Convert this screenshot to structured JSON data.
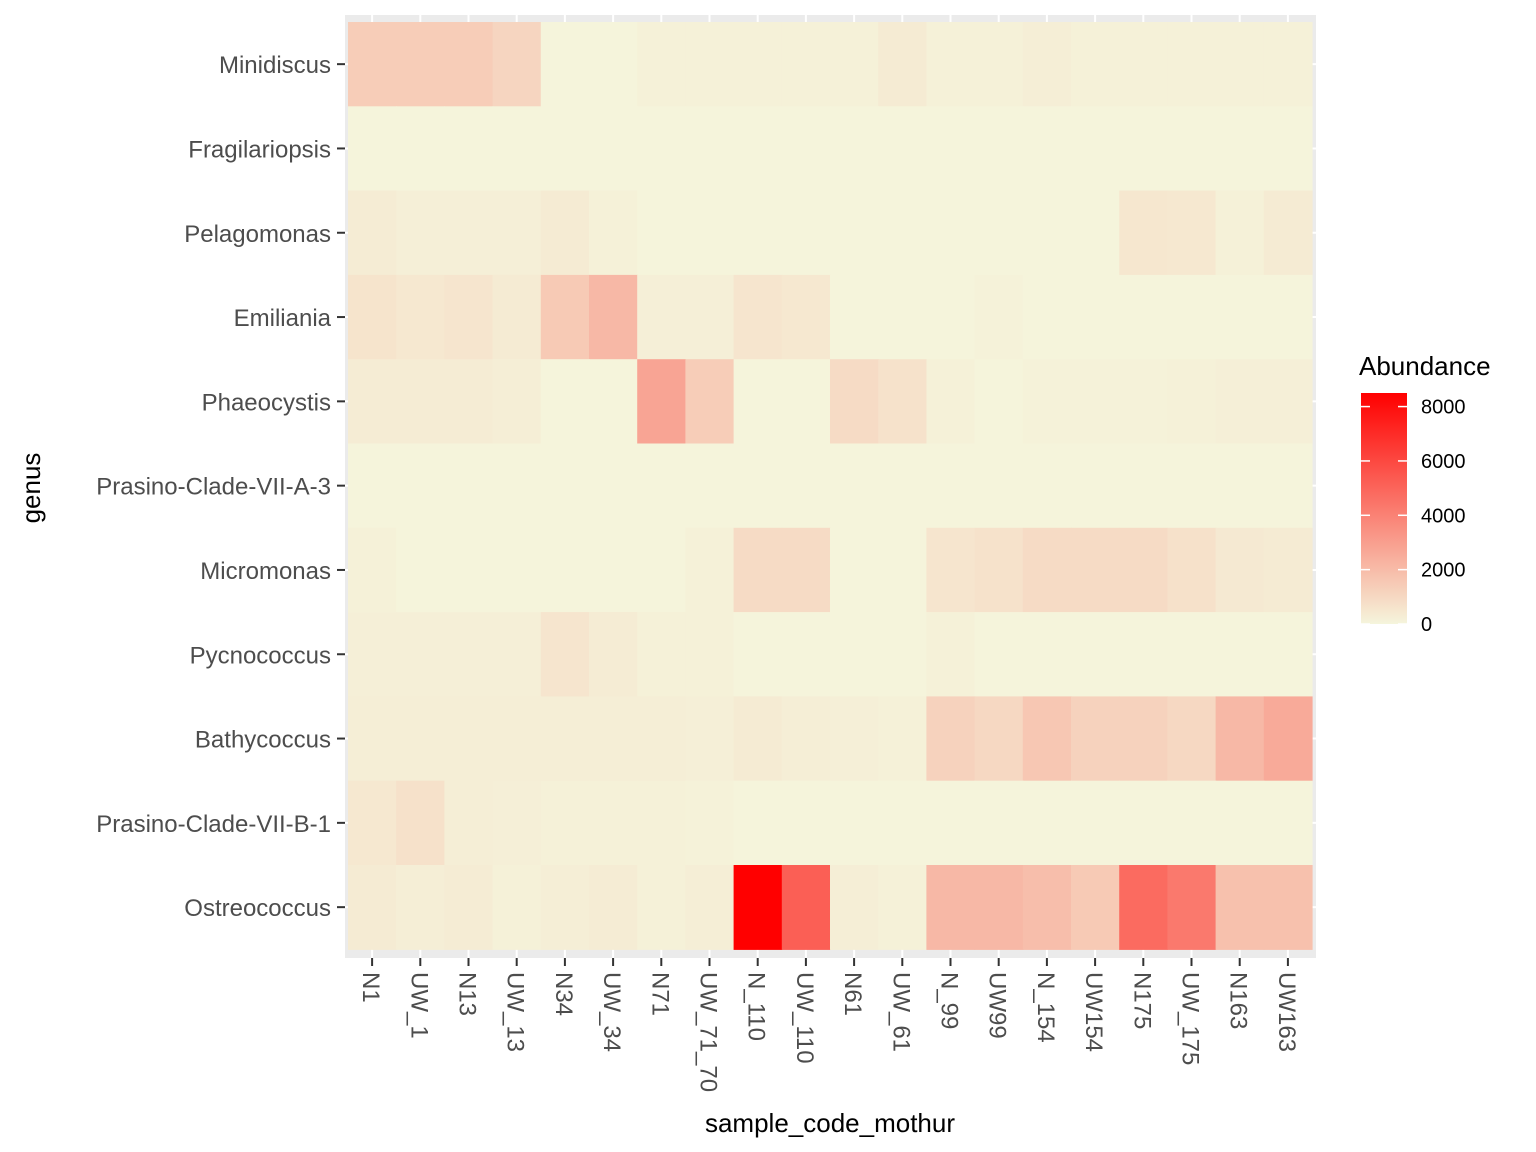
{
  "chart_data": {
    "type": "heatmap",
    "xlabel": "sample_code_mothur",
    "ylabel": "genus",
    "x": [
      "N1",
      "UW_1",
      "N13",
      "UW_13",
      "N34",
      "UW_34",
      "N71",
      "UW_71_70",
      "N_110",
      "UW_110",
      "N61",
      "UW_61",
      "N_99",
      "UW99",
      "N_154",
      "UW154",
      "N175",
      "UW_175",
      "N163",
      "UW163"
    ],
    "y": [
      "Minidiscus",
      "Fragilariopsis",
      "Pelagomonas",
      "Emiliania",
      "Phaeocystis",
      "Prasino-Clade-VII-A-3",
      "Micromonas",
      "Pycnococcus",
      "Bathycoccus",
      "Prasino-Clade-VII-B-1",
      "Ostreococcus"
    ],
    "values": [
      [
        1400,
        1400,
        1400,
        1100,
        50,
        50,
        150,
        150,
        150,
        150,
        150,
        350,
        150,
        150,
        250,
        150,
        150,
        150,
        150,
        150
      ],
      [
        20,
        20,
        20,
        20,
        20,
        20,
        20,
        20,
        20,
        20,
        20,
        20,
        20,
        20,
        20,
        20,
        20,
        20,
        20,
        20
      ],
      [
        300,
        200,
        200,
        200,
        350,
        150,
        50,
        50,
        50,
        50,
        50,
        50,
        50,
        50,
        50,
        50,
        500,
        450,
        150,
        350
      ],
      [
        600,
        450,
        550,
        350,
        1500,
        2100,
        200,
        200,
        550,
        450,
        50,
        50,
        50,
        100,
        50,
        50,
        50,
        50,
        50,
        50
      ],
      [
        300,
        300,
        300,
        250,
        50,
        50,
        2800,
        1400,
        50,
        50,
        900,
        650,
        150,
        50,
        100,
        100,
        100,
        150,
        200,
        200
      ],
      [
        20,
        20,
        20,
        20,
        20,
        20,
        20,
        20,
        20,
        20,
        20,
        20,
        20,
        20,
        20,
        20,
        20,
        20,
        20,
        20
      ],
      [
        150,
        50,
        50,
        50,
        50,
        50,
        50,
        150,
        900,
        900,
        50,
        50,
        550,
        650,
        900,
        900,
        900,
        700,
        400,
        350
      ],
      [
        200,
        200,
        200,
        200,
        550,
        300,
        150,
        150,
        50,
        50,
        50,
        50,
        150,
        50,
        50,
        50,
        50,
        50,
        50,
        50
      ],
      [
        250,
        250,
        250,
        250,
        250,
        250,
        250,
        200,
        350,
        250,
        200,
        150,
        1200,
        1000,
        1600,
        1200,
        1200,
        1000,
        2100,
        2600
      ],
      [
        450,
        700,
        250,
        200,
        150,
        150,
        150,
        100,
        50,
        50,
        50,
        50,
        50,
        50,
        50,
        50,
        50,
        50,
        50,
        50
      ],
      [
        350,
        250,
        300,
        150,
        250,
        300,
        150,
        250,
        8500,
        5200,
        250,
        150,
        2100,
        2100,
        1900,
        1500,
        4800,
        4300,
        1800,
        1800
      ]
    ],
    "legend": {
      "title": "Abundance",
      "ticks": [
        0,
        2000,
        4000,
        6000,
        8000
      ],
      "range": [
        0,
        8500
      ],
      "low_color": "#f5f5dc",
      "high_color": "#ff0000",
      "placement": "right"
    },
    "panel_background": "#ebebeb",
    "grid": true
  }
}
